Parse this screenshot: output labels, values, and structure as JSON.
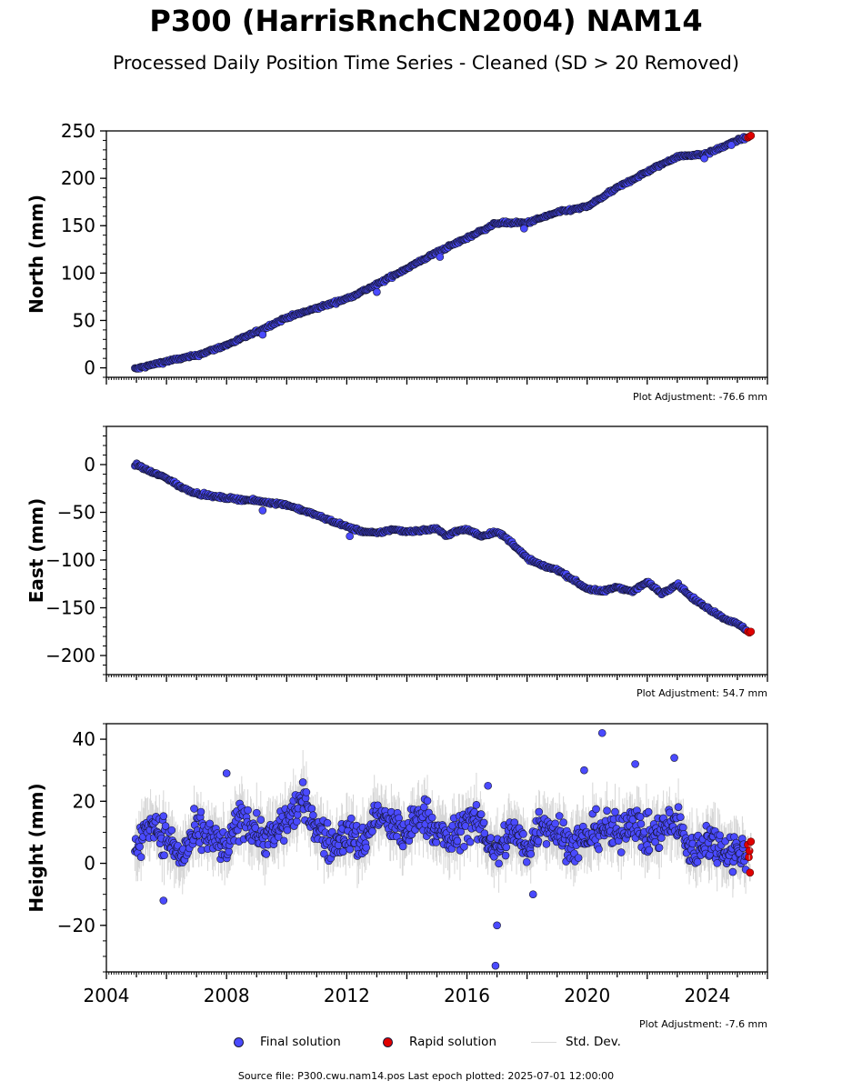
{
  "title": "P300 (HarrisRnchCN2004) NAM14",
  "subtitle": "Processed Daily Position Time Series - Cleaned (SD > 20 Removed)",
  "legend": {
    "final": "Final solution",
    "rapid": "Rapid solution",
    "std": "Std. Dev."
  },
  "footer": "Source file: P300.cwu.nam14.pos  Last epoch plotted: 2025-07-01 12:00:00",
  "colors": {
    "final": "#4a4aff",
    "rapid": "#e00000",
    "std": "#9a9a9a",
    "edge": "#15152e"
  },
  "chart_data": [
    {
      "type": "scatter",
      "ylabel": "North (mm)",
      "adjustment": "Plot Adjustment: -76.6 mm",
      "ylim": [
        -10,
        250
      ],
      "yticks": [
        0,
        50,
        100,
        150,
        200,
        250
      ],
      "ytick_labels": [
        "0",
        "50",
        "100",
        "150",
        "200",
        "250"
      ],
      "xlim": [
        2004,
        2026
      ],
      "series": [
        {
          "role": "final",
          "x": [
            2005.0,
            2006.0,
            2007.0,
            2008.0,
            2009.0,
            2010.0,
            2011.0,
            2012.0,
            2013.0,
            2014.0,
            2015.0,
            2016.0,
            2017.0,
            2018.0,
            2019.0,
            2020.0,
            2021.0,
            2022.0,
            2023.0,
            2024.0,
            2025.0,
            2025.4
          ],
          "y": [
            -1,
            7,
            13,
            24,
            38,
            53,
            63,
            73,
            88,
            105,
            122,
            137,
            153,
            153,
            164,
            170,
            190,
            207,
            223,
            226,
            240,
            244
          ]
        },
        {
          "role": "rapid",
          "x": [
            2025.35,
            2025.4,
            2025.45
          ],
          "y": [
            243,
            244,
            245
          ]
        }
      ],
      "outliers": [
        [
          2009.2,
          35
        ],
        [
          2013.0,
          80
        ],
        [
          2015.1,
          117
        ],
        [
          2017.9,
          147
        ],
        [
          2023.9,
          221
        ],
        [
          2024.8,
          235
        ]
      ]
    },
    {
      "type": "scatter",
      "ylabel": "East (mm)",
      "adjustment": "Plot Adjustment: 54.7 mm",
      "ylim": [
        -220,
        40
      ],
      "yticks": [
        0,
        -50,
        -100,
        -150,
        -200
      ],
      "ytick_labels": [
        "0",
        "−50",
        "−100",
        "−150",
        "−200"
      ],
      "xlim": [
        2004,
        2026
      ],
      "series": [
        {
          "role": "final",
          "x": [
            2005.0,
            2005.5,
            2006.0,
            2006.5,
            2007.0,
            2007.5,
            2008.0,
            2009.0,
            2010.0,
            2011.0,
            2012.0,
            2012.5,
            2013.0,
            2013.5,
            2014.0,
            2014.5,
            2015.0,
            2015.3,
            2015.6,
            2016.0,
            2016.5,
            2017.0,
            2017.5,
            2018.0,
            2018.5,
            2019.0,
            2019.5,
            2020.0,
            2020.5,
            2021.0,
            2021.5,
            2022.0,
            2022.5,
            2023.0,
            2023.5,
            2024.0,
            2024.5,
            2025.0,
            2025.4
          ],
          "y": [
            0,
            -8,
            -14,
            -24,
            -30,
            -33,
            -35,
            -38,
            -42,
            -53,
            -65,
            -70,
            -72,
            -68,
            -70,
            -69,
            -67,
            -75,
            -70,
            -68,
            -75,
            -70,
            -82,
            -98,
            -106,
            -110,
            -120,
            -130,
            -133,
            -128,
            -133,
            -123,
            -135,
            -125,
            -140,
            -150,
            -160,
            -167,
            -175
          ]
        },
        {
          "role": "rapid",
          "x": [
            2025.35,
            2025.4,
            2025.45
          ],
          "y": [
            -175,
            -176,
            -175
          ]
        }
      ],
      "outliers": [
        [
          2009.2,
          -48
        ],
        [
          2012.1,
          -75
        ]
      ]
    },
    {
      "type": "scatter",
      "ylabel": "Height (mm)",
      "adjustment": "Plot Adjustment: -7.6 mm",
      "ylim": [
        -35,
        45
      ],
      "yticks": [
        40,
        20,
        0,
        -20
      ],
      "ytick_labels": [
        "40",
        "20",
        "0",
        "−20"
      ],
      "xlim": [
        2004,
        2026
      ],
      "xticks": [
        2004,
        2008,
        2012,
        2016,
        2020,
        2024
      ],
      "xtick_labels": [
        "2004",
        "2008",
        "2012",
        "2016",
        "2020",
        "2024"
      ],
      "series": [
        {
          "role": "final",
          "x": [
            2005.0,
            2005.5,
            2006.0,
            2006.5,
            2007.0,
            2007.5,
            2008.0,
            2008.5,
            2009.0,
            2009.5,
            2010.0,
            2010.5,
            2011.0,
            2011.5,
            2012.0,
            2012.5,
            2013.0,
            2013.5,
            2014.0,
            2014.5,
            2015.0,
            2015.5,
            2016.0,
            2016.5,
            2017.0,
            2017.5,
            2018.0,
            2018.5,
            2019.0,
            2019.5,
            2020.0,
            2020.5,
            2021.0,
            2021.5,
            2022.0,
            2022.5,
            2023.0,
            2023.5,
            2024.0,
            2024.5,
            2025.0,
            2025.3
          ],
          "y": [
            5,
            14,
            8,
            2,
            10,
            8,
            4,
            16,
            10,
            8,
            14,
            20,
            12,
            5,
            10,
            6,
            16,
            12,
            9,
            17,
            10,
            7,
            14,
            11,
            3,
            11,
            4,
            14,
            10,
            6,
            8,
            12,
            9,
            15,
            8,
            11,
            13,
            3,
            8,
            5,
            4,
            2
          ]
        },
        {
          "role": "rapid",
          "x": [
            2025.35,
            2025.38,
            2025.4,
            2025.42,
            2025.45
          ],
          "y": [
            6,
            2,
            4,
            -3,
            7
          ]
        }
      ],
      "outliers": [
        [
          2020.5,
          42
        ],
        [
          2017.0,
          -20
        ],
        [
          2016.95,
          -33
        ],
        [
          2022.9,
          34
        ],
        [
          2008.0,
          29
        ],
        [
          2021.6,
          32
        ],
        [
          2016.7,
          25
        ],
        [
          2005.9,
          -12
        ],
        [
          2018.2,
          -10
        ],
        [
          2019.9,
          30
        ]
      ]
    }
  ]
}
